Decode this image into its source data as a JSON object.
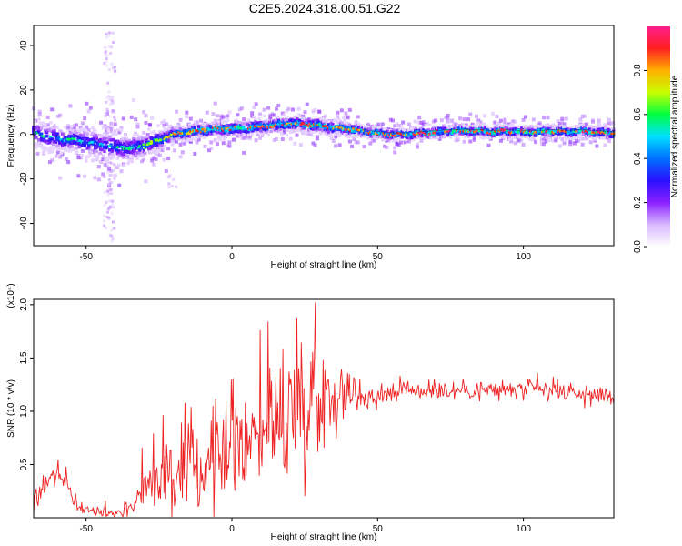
{
  "figure_title": "C2E5.2024.318.00.51.G22",
  "chart_data": [
    {
      "type": "heatmap",
      "xlabel": "Height of straight line (km)",
      "ylabel": "Frequency (Hz)",
      "xlim": [
        -68,
        131
      ],
      "ylim": [
        -50,
        49
      ],
      "x_ticks": [
        -50,
        0,
        50,
        100
      ],
      "x_tick_labels": [
        "-50",
        "0",
        "50",
        "100"
      ],
      "y_ticks": [
        40,
        20,
        0,
        -20,
        -40
      ],
      "y_tick_labels": [
        "40",
        "20",
        "0",
        "-20",
        "-40"
      ],
      "grid": false,
      "colorbar": {
        "label": "Normalized spectral amplitude",
        "range": [
          0.0,
          1.0
        ],
        "ticks": [
          0.0,
          0.2,
          0.4,
          0.6,
          0.8
        ],
        "tick_labels": [
          "0.0",
          "0.2",
          "0.4",
          "0.6",
          "0.8"
        ],
        "colors": [
          "#ffffff",
          "#d8b8ff",
          "#8a20ff",
          "#2a10ff",
          "#0070ff",
          "#00e0ff",
          "#00ff40",
          "#c8ff00",
          "#ffb000",
          "#ff2020",
          "#ff1e8c"
        ]
      },
      "ridge": {
        "name": "",
        "x": [
          -68,
          -65,
          -62,
          -58,
          -55,
          -52,
          -50,
          -48,
          -45,
          -42,
          -40,
          -38,
          -35,
          -32,
          -30,
          -28,
          -25,
          -22,
          -20,
          -17,
          -15,
          -12,
          -10,
          -5,
          0,
          5,
          10,
          15,
          20,
          25,
          30,
          35,
          40,
          45,
          50,
          55,
          60,
          65,
          70,
          75,
          80,
          85,
          90,
          95,
          100,
          105,
          110,
          115,
          120,
          125,
          131
        ],
        "y": [
          1.5,
          -0.5,
          -1.5,
          -2.0,
          -2.5,
          -3.0,
          -3.5,
          -4.0,
          -4.5,
          -5.0,
          -5.5,
          -6.0,
          -6.0,
          -5.5,
          -5.0,
          -4.0,
          -2.5,
          -1.0,
          0.0,
          0.5,
          1.0,
          1.5,
          2.0,
          2.5,
          2.5,
          3.0,
          3.5,
          4.0,
          5.0,
          4.5,
          4.0,
          3.0,
          2.5,
          1.5,
          0.5,
          0.0,
          0.0,
          0.5,
          1.0,
          1.5,
          1.5,
          1.5,
          1.0,
          1.5,
          1.0,
          1.0,
          1.5,
          1.0,
          1.5,
          1.0,
          0.5
        ],
        "spread_hz": [
          6,
          7,
          7,
          7,
          7,
          7,
          8,
          8,
          8,
          8,
          8,
          8,
          7,
          7,
          7,
          6,
          6,
          5,
          4,
          4,
          4,
          4,
          4,
          4,
          4,
          4,
          4,
          4,
          4,
          4,
          4,
          4,
          4,
          3,
          3,
          3,
          3,
          3,
          3,
          3,
          3,
          3,
          3,
          3,
          3,
          3,
          3,
          3,
          3,
          3,
          3
        ],
        "peak_amplitude": [
          0.55,
          0.6,
          0.6,
          0.6,
          0.6,
          0.6,
          0.55,
          0.55,
          0.55,
          0.55,
          0.6,
          0.6,
          0.6,
          0.6,
          0.65,
          0.7,
          0.7,
          0.75,
          0.8,
          0.85,
          0.85,
          0.9,
          0.9,
          0.9,
          0.9,
          0.9,
          0.9,
          0.9,
          0.9,
          0.9,
          0.9,
          0.85,
          0.85,
          0.9,
          0.9,
          0.9,
          0.9,
          0.95,
          0.95,
          0.95,
          0.95,
          0.95,
          0.95,
          0.95,
          0.95,
          0.95,
          0.95,
          0.95,
          0.95,
          0.95,
          0.95
        ]
      }
    },
    {
      "type": "line",
      "xlabel": "Height of straight line (km)",
      "ylabel": "SNR (10 * v/v)",
      "scale_label": "(x10⁴)",
      "xlim": [
        -68,
        131
      ],
      "ylim": [
        0,
        2.05
      ],
      "x_ticks": [
        -50,
        0,
        50,
        100
      ],
      "x_tick_labels": [
        "-50",
        "0",
        "50",
        "100"
      ],
      "y_ticks": [
        0.5,
        1.0,
        1.5,
        2.0
      ],
      "y_tick_labels": [
        "0.5",
        "1.0",
        "1.5",
        "2.0"
      ],
      "grid": false,
      "line_color": "#ee2222",
      "series": [
        {
          "name": "",
          "x": [
            -68,
            -65,
            -62,
            -60,
            -56,
            -54,
            -52,
            -50,
            -48,
            -46,
            -44,
            -42,
            -40,
            -38,
            -36,
            -34,
            -32,
            -30,
            -28,
            -26,
            -24,
            -22,
            -20,
            -18,
            -16,
            -14,
            -12,
            -10,
            -8,
            -6,
            -4,
            -2,
            0,
            2,
            4,
            6,
            8,
            10,
            12,
            14,
            16,
            18,
            20,
            22,
            24,
            26,
            28,
            30,
            32,
            35,
            40,
            45,
            50,
            55,
            60,
            65,
            70,
            75,
            80,
            85,
            90,
            95,
            100,
            105,
            110,
            115,
            120,
            125,
            131
          ],
          "y": [
            0.15,
            0.3,
            0.4,
            0.42,
            0.3,
            0.15,
            0.1,
            0.08,
            0.06,
            0.06,
            0.05,
            0.05,
            0.05,
            0.06,
            0.08,
            0.12,
            0.2,
            0.28,
            0.35,
            0.4,
            0.45,
            0.5,
            0.4,
            0.35,
            0.45,
            0.5,
            0.55,
            0.5,
            0.6,
            0.6,
            0.65,
            0.65,
            0.7,
            0.7,
            0.75,
            0.8,
            0.85,
            0.85,
            0.9,
            0.95,
            0.9,
            1.0,
            1.0,
            1.05,
            1.1,
            1.05,
            1.1,
            1.15,
            1.15,
            1.15,
            1.15,
            1.15,
            1.15,
            1.2,
            1.2,
            1.2,
            1.2,
            1.2,
            1.2,
            1.2,
            1.2,
            1.2,
            1.2,
            1.2,
            1.18,
            1.18,
            1.15,
            1.15,
            1.15
          ]
        }
      ],
      "noise_amplitude": {
        "x": [
          -68,
          -60,
          -50,
          -40,
          -35,
          -30,
          -25,
          -20,
          -10,
          0,
          10,
          20,
          25,
          30,
          40,
          50,
          131
        ],
        "y": [
          0.12,
          0.12,
          0.04,
          0.04,
          0.08,
          0.18,
          0.35,
          0.45,
          0.4,
          0.45,
          0.55,
          0.6,
          0.65,
          0.45,
          0.2,
          0.1,
          0.08
        ]
      },
      "annotations": []
    }
  ]
}
